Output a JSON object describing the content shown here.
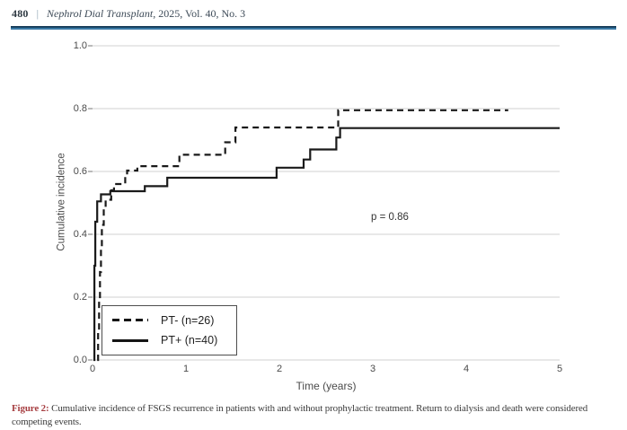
{
  "header": {
    "page_number": "480",
    "divider": "|",
    "journal_name": "Nephrol Dial Transplant",
    "issue_info": ", 2025, Vol. 40, No. 3"
  },
  "caption": {
    "label": "Figure 2:",
    "text": " Cumulative incidence of FSGS recurrence in patients with and without prophylactic treatment. Return to dialysis and death were considered competing events."
  },
  "colors": {
    "header_rule_top": "#14344f",
    "header_rule_bottom": "#3a79a5",
    "caption_label": "#a63d40",
    "curve": "#1a1a1a",
    "grid": "#d9d9d9",
    "tick": "#8c8c8c",
    "text": "#4a4a4a"
  },
  "chart_data": {
    "type": "line",
    "subtype": "step-cumulative-incidence",
    "title": "",
    "xlabel": "Time (years)",
    "ylabel": "Cumulative incidence",
    "xlim": [
      0,
      5
    ],
    "ylim": [
      0.0,
      1.0
    ],
    "grid": "horizontal",
    "legend_position": "lower left",
    "xticks": [
      0,
      1,
      2,
      3,
      4,
      5
    ],
    "xticklabels": [
      "0",
      "1",
      "2",
      "3",
      "4",
      "5"
    ],
    "yticks": [
      0.0,
      0.2,
      0.4,
      0.6,
      0.8,
      1.0
    ],
    "yticklabels": [
      "0.0",
      "0.2",
      "0.4",
      "0.6",
      "0.8",
      "1.0"
    ],
    "annotations": [
      {
        "text": "p = 0.86",
        "x": 3.0,
        "y": 0.45
      }
    ],
    "series": [
      {
        "name": "PT- (n=26)",
        "style": "dashed",
        "end_x": 4.45,
        "points": [
          [
            0.05,
            0.0
          ],
          [
            0.06,
            0.1
          ],
          [
            0.07,
            0.19
          ],
          [
            0.08,
            0.28
          ],
          [
            0.09,
            0.36
          ],
          [
            0.1,
            0.43
          ],
          [
            0.12,
            0.48
          ],
          [
            0.14,
            0.51
          ],
          [
            0.2,
            0.54
          ],
          [
            0.23,
            0.56
          ],
          [
            0.35,
            0.585
          ],
          [
            0.37,
            0.603
          ],
          [
            0.48,
            0.617
          ],
          [
            0.93,
            0.653
          ],
          [
            1.42,
            0.693
          ],
          [
            1.53,
            0.74
          ],
          [
            2.63,
            0.795
          ]
        ]
      },
      {
        "name": "PT+ (n=40)",
        "style": "solid",
        "end_x": 5.0,
        "points": [
          [
            0.01,
            0.0
          ],
          [
            0.02,
            0.3
          ],
          [
            0.03,
            0.44
          ],
          [
            0.05,
            0.505
          ],
          [
            0.09,
            0.527
          ],
          [
            0.19,
            0.537
          ],
          [
            0.56,
            0.553
          ],
          [
            0.8,
            0.58
          ],
          [
            1.97,
            0.612
          ],
          [
            2.26,
            0.638
          ],
          [
            2.33,
            0.67
          ],
          [
            2.61,
            0.708
          ],
          [
            2.65,
            0.738
          ]
        ]
      }
    ]
  }
}
